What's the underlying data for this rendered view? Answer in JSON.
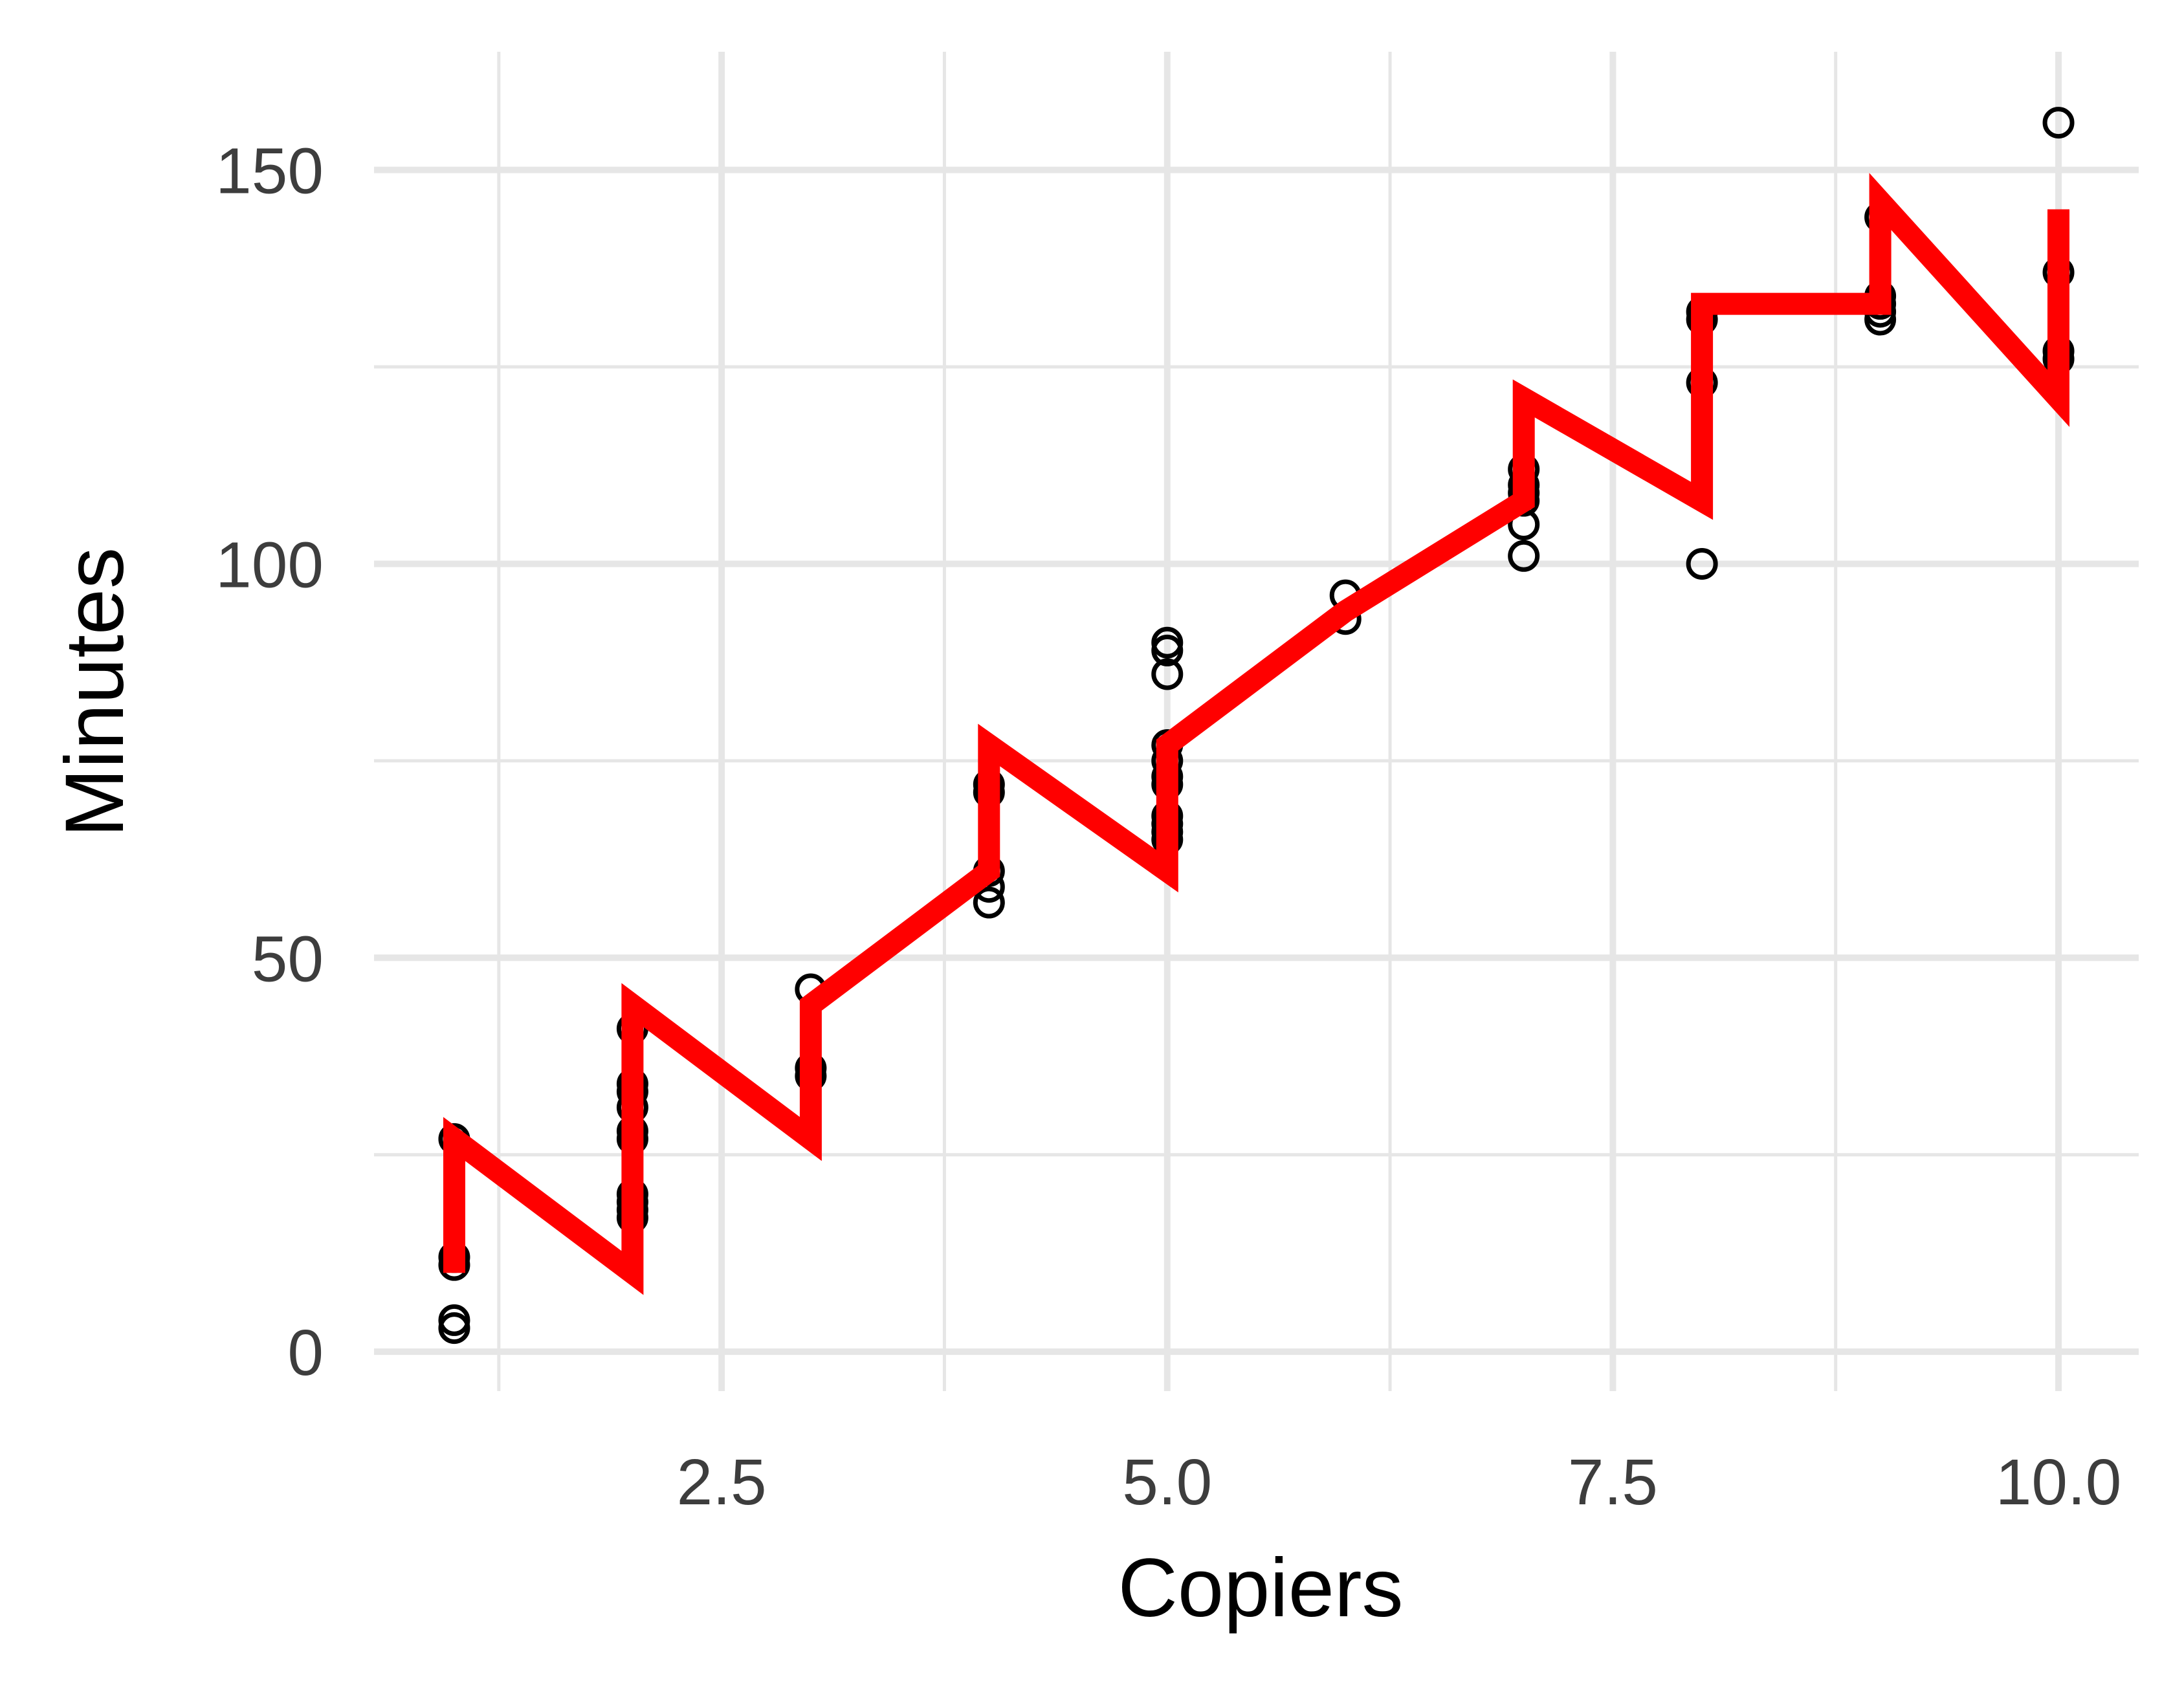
{
  "chart_data": {
    "type": "scatter",
    "xlabel": "Copiers",
    "ylabel": "Minutes",
    "xlim": [
      0.55,
      10.45
    ],
    "ylim": [
      -5,
      165
    ],
    "x_ticks": [
      2.5,
      5.0,
      7.5,
      10.0
    ],
    "x_tick_labels": [
      "2.5",
      "5.0",
      "7.5",
      "10.0"
    ],
    "y_ticks": [
      0,
      50,
      100,
      150
    ],
    "y_tick_labels": [
      "0",
      "50",
      "100",
      "150"
    ],
    "grid": true,
    "background": "#ffffff",
    "grid_color": "#e6e6e6",
    "points_color": "#000000",
    "line_color": "#ff0000",
    "series": [
      {
        "kind": "points",
        "x": [
          1,
          1,
          1,
          1,
          1,
          2,
          2,
          2,
          2,
          2,
          2,
          2,
          2,
          2,
          2,
          3,
          3,
          3,
          4,
          4,
          4,
          4,
          4,
          5,
          5,
          5,
          5,
          5,
          5,
          5,
          5,
          5,
          5,
          5,
          6,
          6,
          7,
          7,
          7,
          7,
          7,
          7,
          8,
          8,
          8,
          8,
          9,
          9,
          9,
          9,
          9,
          10,
          10,
          10,
          10
        ],
        "y": [
          27,
          12,
          11,
          4,
          3,
          41,
          34,
          33,
          31,
          28,
          27,
          20,
          19,
          18,
          17,
          46,
          36,
          35,
          72,
          71,
          61,
          59,
          57,
          90,
          89,
          86,
          77,
          75,
          73,
          72,
          68,
          67,
          66,
          65,
          96,
          93,
          112,
          110,
          109,
          108,
          105,
          101,
          132,
          131,
          123,
          100,
          144,
          134,
          133,
          132,
          131,
          156,
          137,
          127,
          126
        ]
      },
      {
        "kind": "line",
        "x": [
          1,
          1,
          2,
          2,
          3,
          3,
          4,
          4,
          5,
          5,
          6,
          7,
          7,
          8,
          8,
          9,
          9,
          10,
          10
        ],
        "y": [
          10,
          27,
          10,
          44,
          27,
          44,
          61,
          77,
          61,
          77,
          94,
          108,
          121,
          108,
          133,
          133,
          146,
          121,
          145
        ]
      }
    ]
  }
}
